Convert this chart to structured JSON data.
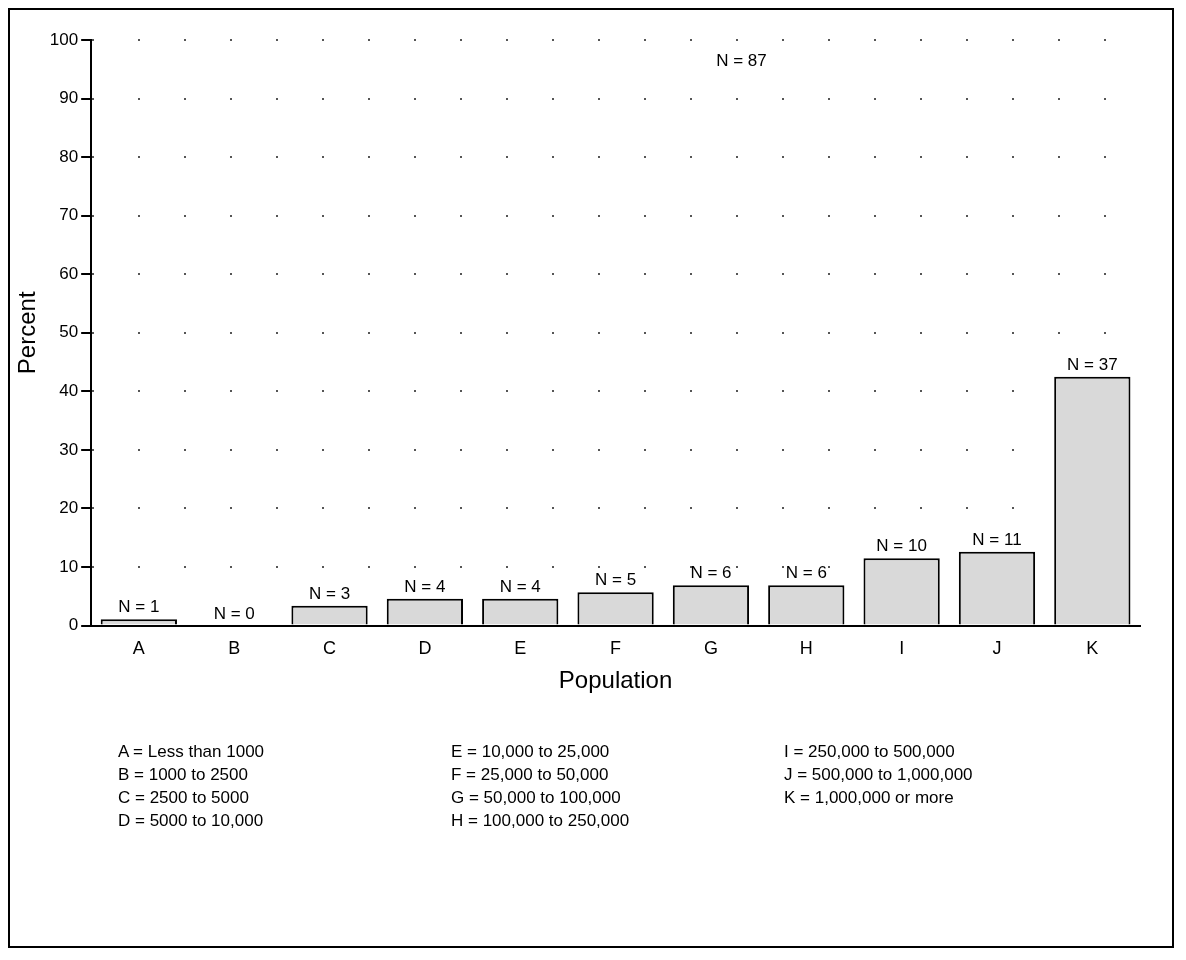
{
  "chart_data": {
    "type": "bar",
    "xlabel": "Population",
    "ylabel": "Percent",
    "categories": [
      "A",
      "B",
      "C",
      "D",
      "E",
      "F",
      "G",
      "H",
      "I",
      "J",
      "K"
    ],
    "values": [
      1.1,
      0,
      3.4,
      4.6,
      4.6,
      5.7,
      6.9,
      6.9,
      11.5,
      12.6,
      42.5
    ],
    "color": "#d9d9d9",
    "ylim": [
      0,
      100
    ],
    "yticks": [
      0,
      10,
      20,
      30,
      40,
      50,
      60,
      70,
      80,
      90,
      100
    ],
    "grid": "y",
    "legend": false,
    "annotations": [
      "N = 87",
      {
        "text": "N = 1",
        "x": "A",
        "y": 1.1
      },
      {
        "text": "N = 0",
        "x": "B",
        "y": 0
      },
      {
        "text": "N = 3",
        "x": "C",
        "y": 3.4
      },
      {
        "text": "N = 4",
        "x": "D",
        "y": 4.6
      },
      {
        "text": "N = 4",
        "x": "E",
        "y": 4.6
      },
      {
        "text": "N = 5",
        "x": "F",
        "y": 5.7
      },
      {
        "text": "N = 6",
        "x": "G",
        "y": 6.9
      },
      {
        "text": "N = 6",
        "x": "H",
        "y": 6.9
      },
      {
        "text": "N = 10",
        "x": "I",
        "y": 11.5
      },
      {
        "text": "N = 11",
        "x": "J",
        "y": 12.6
      },
      {
        "text": "N = 37",
        "x": "K",
        "y": 42.5
      },
      "A = Less than 1000",
      "B = 1000 to 2500",
      "C = 2500 to 5000",
      "D = 5000 to 10,000",
      "E = 10,000 to 25,000",
      "F = 25,000 to 50,000",
      "G = 50,000 to 100,000",
      "H = 100,000 to 250,000",
      "I  = 250,000 to 500,000",
      "J  = 500,000 to 1,000,000",
      "K  =  1,000,000 or more"
    ]
  }
}
